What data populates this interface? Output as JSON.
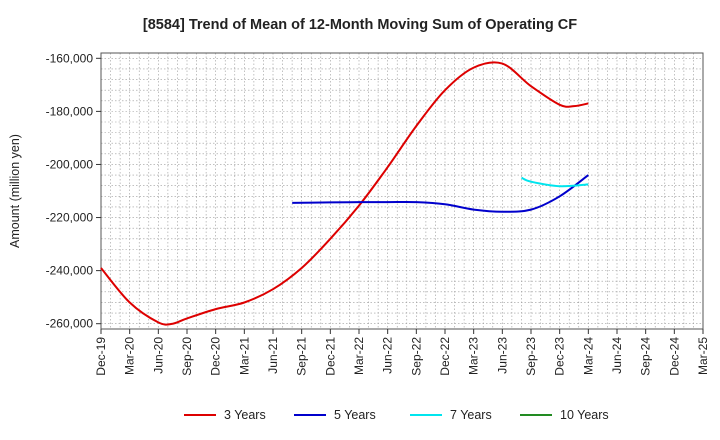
{
  "chart_data": {
    "type": "line",
    "title": "[8584]  Trend of Mean of 12-Month Moving Sum of Operating CF",
    "xlabel": "",
    "ylabel": "Amount (million yen)",
    "ylim": [
      -262000,
      -158000
    ],
    "yticks": [
      -160000,
      -180000,
      -200000,
      -220000,
      -240000,
      -260000
    ],
    "ytick_labels": [
      "-160,000",
      "-180,000",
      "-200,000",
      "-220,000",
      "-240,000",
      "-260,000"
    ],
    "xtick_labels": [
      "Dec-19",
      "Mar-20",
      "Jun-20",
      "Sep-20",
      "Dec-20",
      "Mar-21",
      "Jun-21",
      "Sep-21",
      "Dec-21",
      "Mar-22",
      "Jun-22",
      "Sep-22",
      "Dec-22",
      "Mar-23",
      "Jun-23",
      "Sep-23",
      "Dec-23",
      "Mar-24",
      "Jun-24",
      "Sep-24",
      "Dec-24",
      "Mar-25"
    ],
    "grid": true,
    "legend_position": "bottom",
    "series": [
      {
        "name": "3 Years",
        "color": "#dd0000",
        "points": [
          [
            0,
            -239000
          ],
          [
            1,
            -252000
          ],
          [
            2,
            -259500
          ],
          [
            2.5,
            -260000
          ],
          [
            3,
            -258000
          ],
          [
            4,
            -254500
          ],
          [
            5,
            -252000
          ],
          [
            6,
            -247000
          ],
          [
            7,
            -239000
          ],
          [
            8,
            -228000
          ],
          [
            9,
            -215500
          ],
          [
            10,
            -201000
          ],
          [
            11,
            -185500
          ],
          [
            12,
            -172000
          ],
          [
            13,
            -163500
          ],
          [
            14,
            -162000
          ],
          [
            15,
            -170500
          ],
          [
            16,
            -177500
          ],
          [
            16.5,
            -178000
          ],
          [
            17,
            -177000
          ]
        ]
      },
      {
        "name": "5 Years",
        "color": "#0000cc",
        "points": [
          [
            6.67,
            -214500
          ],
          [
            8,
            -214300
          ],
          [
            9,
            -214200
          ],
          [
            10,
            -214200
          ],
          [
            11,
            -214200
          ],
          [
            12,
            -215000
          ],
          [
            13,
            -217000
          ],
          [
            14,
            -217800
          ],
          [
            15,
            -217000
          ],
          [
            16,
            -212000
          ],
          [
            17,
            -204000
          ]
        ]
      },
      {
        "name": "7 Years",
        "color": "#00e5ee",
        "points": [
          [
            14.67,
            -205000
          ],
          [
            15,
            -206500
          ],
          [
            16,
            -208200
          ],
          [
            17,
            -207500
          ]
        ]
      },
      {
        "name": "10 Years",
        "color": "#228b22",
        "points": []
      }
    ]
  }
}
